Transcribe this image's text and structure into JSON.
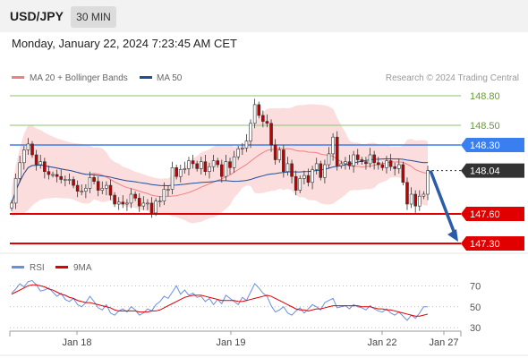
{
  "header": {
    "pair": "USD/JPY",
    "timeframe": "30 MIN"
  },
  "datetime": "Monday, January 22, 2024 7:23:45 AM CET",
  "colors": {
    "ma20": "#f08080",
    "ma50": "#1f4e99",
    "bands_fill": "#fcd9d9",
    "resistance": "#8dc26f",
    "pivot": "#3a7ff0",
    "support": "#e00000",
    "candle_up": "#ffffff",
    "candle_down": "#c00000",
    "rsi": "#6a8fe0",
    "rsi_ma": "#e00000",
    "arrow": "#2b5ca8",
    "current_price_tag": "#333333"
  },
  "chart_data": [
    {
      "type": "candlestick",
      "legend": [
        {
          "label": "MA 20 + Bollinger Bands",
          "color": "#f08080"
        },
        {
          "label": "MA 50",
          "color": "#1f4e99"
        }
      ],
      "watermark": "Research © 2024 Trading Central",
      "x_ticks": [
        "Jan 18",
        "Jan 19",
        "Jan 22",
        "Jan 27"
      ],
      "ylim": [
        147.28,
        148.85
      ],
      "levels": [
        {
          "label": "148.80",
          "value": 148.8,
          "kind": "resistance"
        },
        {
          "label": "148.50",
          "value": 148.5,
          "kind": "resistance"
        },
        {
          "label": "148.30",
          "value": 148.3,
          "kind": "pivot"
        },
        {
          "label": "148.04",
          "value": 148.04,
          "kind": "current"
        },
        {
          "label": "147.60",
          "value": 147.6,
          "kind": "support"
        },
        {
          "label": "147.30",
          "value": 147.3,
          "kind": "support"
        }
      ],
      "close_series": [
        147.71,
        147.96,
        148.12,
        148.25,
        148.31,
        148.2,
        148.1,
        148.13,
        148.03,
        148.0,
        148.0,
        147.98,
        147.95,
        147.95,
        147.95,
        147.89,
        147.83,
        147.83,
        147.86,
        147.97,
        147.93,
        147.84,
        147.86,
        147.89,
        147.79,
        147.7,
        147.72,
        147.7,
        147.71,
        147.8,
        147.76,
        147.68,
        147.71,
        147.71,
        147.61,
        147.73,
        147.73,
        147.85,
        147.85,
        148.07,
        147.98,
        148.05,
        148.06,
        148.14,
        148.11,
        148.06,
        148.13,
        148.03,
        148.08,
        148.14,
        148.1,
        147.98,
        148.13,
        148.07,
        148.18,
        148.26,
        148.27,
        148.34,
        148.52,
        148.71,
        148.6,
        148.54,
        148.52,
        148.3,
        148.15,
        148.25,
        148.03,
        148.11,
        147.98,
        147.84,
        147.96,
        147.99,
        147.92,
        148.05,
        148.11,
        147.97,
        148.1,
        148.21,
        148.38,
        148.09,
        148.11,
        148.13,
        148.09,
        148.2,
        148.15,
        148.13,
        148.11,
        148.2,
        148.12,
        148.1,
        148.07,
        148.14,
        148.08,
        148.06,
        148.1,
        147.92,
        147.7,
        147.8,
        147.68,
        147.78,
        147.8,
        148.04
      ]
    },
    {
      "type": "line",
      "legend": [
        {
          "label": "RSI",
          "color": "#6a8fe0"
        },
        {
          "label": "9MA",
          "color": "#e00000"
        }
      ],
      "ylim": [
        25,
        78
      ],
      "y_ticks": [
        "70",
        "50",
        "30"
      ],
      "series": [
        {
          "name": "RSI",
          "values": [
            63,
            67,
            72,
            69,
            74,
            75,
            71,
            65,
            66,
            68,
            64,
            60,
            63,
            57,
            55,
            58,
            52,
            50,
            54,
            60,
            55,
            49,
            47,
            52,
            44,
            42,
            46,
            48,
            45,
            50,
            47,
            42,
            44,
            48,
            46,
            52,
            55,
            60,
            58,
            64,
            70,
            62,
            66,
            61,
            63,
            59,
            60,
            55,
            58,
            52,
            57,
            53,
            61,
            58,
            55,
            52,
            59,
            56,
            64,
            72,
            68,
            63,
            60,
            51,
            45,
            47,
            50,
            44,
            42,
            46,
            49,
            44,
            48,
            52,
            50,
            47,
            54,
            56,
            58,
            49,
            50,
            51,
            48,
            52,
            50,
            49,
            47,
            51,
            48,
            46,
            45,
            48,
            44,
            42,
            45,
            41,
            37,
            42,
            39,
            44,
            50,
            50
          ]
        },
        {
          "name": "9MA",
          "values": [
            62,
            64,
            66,
            68,
            70,
            71,
            71,
            70,
            69,
            67,
            66,
            64,
            62,
            61,
            59,
            58,
            56,
            55,
            54,
            54,
            53,
            52,
            51,
            50,
            49,
            47,
            46,
            46,
            46,
            46,
            46,
            45,
            45,
            45,
            46,
            46,
            47,
            49,
            51,
            53,
            55,
            57,
            59,
            60,
            61,
            61,
            61,
            60,
            59,
            58,
            57,
            56,
            56,
            56,
            56,
            55,
            55,
            56,
            57,
            58,
            59,
            60,
            61,
            60,
            58,
            56,
            54,
            52,
            50,
            48,
            47,
            47,
            46,
            47,
            48,
            48,
            49,
            50,
            51,
            51,
            51,
            51,
            51,
            51,
            51,
            50,
            50,
            50,
            49,
            48,
            48,
            47,
            47,
            46,
            45,
            44,
            43,
            42,
            41,
            41,
            42,
            43
          ]
        }
      ]
    }
  ]
}
